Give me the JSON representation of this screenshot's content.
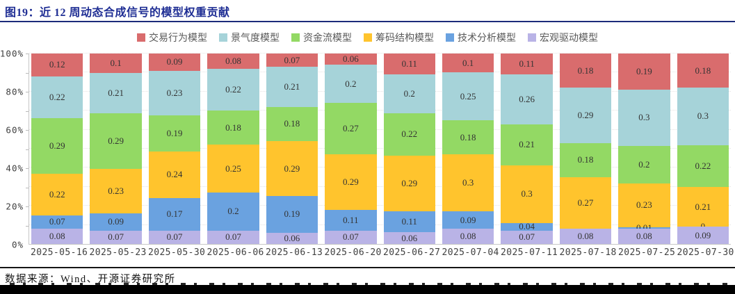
{
  "header": {
    "title": "图19：近 12 周动态合成信号的模型权重贡献"
  },
  "footer": {
    "source_label": "数据来源：Wind、开源证券研究所"
  },
  "chart_data": {
    "type": "bar",
    "variant": "stacked-100-percent",
    "title": "近 12 周动态合成信号的模型权重贡献",
    "xlabel": "",
    "ylabel": "",
    "ylim": [
      0,
      1
    ],
    "y_ticks": [
      "0%",
      "20%",
      "40%",
      "60%",
      "80%",
      "100%"
    ],
    "grid": "dotted-horizontal-10pct",
    "legend_position": "top-center",
    "categories": [
      "2025-05-16",
      "2025-05-23",
      "2025-05-30",
      "2025-06-06",
      "2025-06-13",
      "2025-06-20",
      "2025-06-27",
      "2025-07-04",
      "2025-07-11",
      "2025-07-18",
      "2025-07-25",
      "2025-07-30"
    ],
    "series": [
      {
        "name": "交易行为模型",
        "color": "#d96c6d",
        "values": [
          0.12,
          0.1,
          0.09,
          0.08,
          0.07,
          0.06,
          0.11,
          0.1,
          0.11,
          0.18,
          0.19,
          0.18
        ],
        "labels": [
          "0.12",
          "0.1",
          "0.09",
          "0.08",
          "0.07",
          "0.06",
          "0.11",
          "0.1",
          "0.11",
          "0.18",
          "0.19",
          "0.18"
        ]
      },
      {
        "name": "景气度模型",
        "color": "#a6d3d9",
        "values": [
          0.22,
          0.21,
          0.23,
          0.22,
          0.21,
          0.2,
          0.2,
          0.25,
          0.26,
          0.29,
          0.3,
          0.3
        ],
        "labels": [
          "0.22",
          "0.21",
          "0.23",
          "0.22",
          "0.21",
          "0.2",
          "0.2",
          "0.25",
          "0.26",
          "0.29",
          "0.3",
          "0.3"
        ]
      },
      {
        "name": "资金流模型",
        "color": "#93d964",
        "values": [
          0.29,
          0.29,
          0.19,
          0.18,
          0.18,
          0.27,
          0.22,
          0.18,
          0.21,
          0.18,
          0.2,
          0.22
        ],
        "labels": [
          "0.29",
          "0.29",
          "0.19",
          "0.18",
          "0.18",
          "0.27",
          "0.22",
          "0.18",
          "0.21",
          "0.18",
          "0.2",
          "0.22"
        ]
      },
      {
        "name": "筹码结构模型",
        "color": "#ffc42d",
        "values": [
          0.22,
          0.23,
          0.24,
          0.25,
          0.29,
          0.29,
          0.29,
          0.3,
          0.3,
          0.27,
          0.23,
          0.21
        ],
        "labels": [
          "0.22",
          "0.23",
          "0.24",
          "0.25",
          "0.29",
          "0.29",
          "0.29",
          "0.3",
          "0.3",
          "0.27",
          "0.23",
          "0.21"
        ]
      },
      {
        "name": "技术分析模型",
        "color": "#6aa2e0",
        "values": [
          0.07,
          0.09,
          0.17,
          0.2,
          0.19,
          0.11,
          0.11,
          0.09,
          0.04,
          0,
          0.01,
          0
        ],
        "labels": [
          "0.07",
          "0.09",
          "0.17",
          "0.2",
          "0.19",
          "0.11",
          "0.11",
          "0.09",
          "0.04",
          "",
          "0.01",
          "0"
        ]
      },
      {
        "name": "宏观驱动模型",
        "color": "#b9b3e6",
        "values": [
          0.08,
          0.07,
          0.07,
          0.07,
          0.06,
          0.07,
          0.06,
          0.08,
          0.07,
          0.08,
          0.08,
          0.09
        ],
        "labels": [
          "0.08",
          "0.07",
          "0.07",
          "0.07",
          "0.06",
          "0.07",
          "0.06",
          "0.08",
          "0.07",
          "0.08",
          "0.08",
          "0.09"
        ]
      }
    ]
  }
}
